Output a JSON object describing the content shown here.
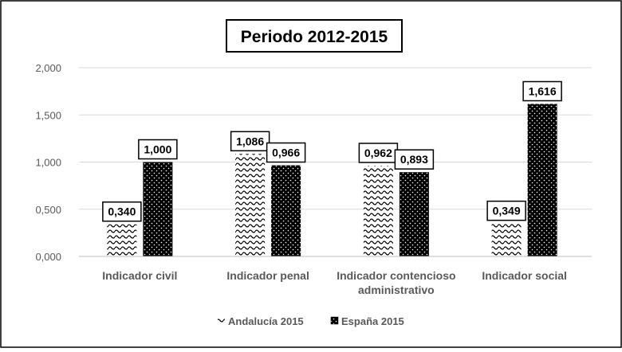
{
  "chart_data": {
    "type": "bar",
    "title": "Periodo 2012-2015",
    "categories": [
      [
        "Indicador civil"
      ],
      [
        "Indicador penal"
      ],
      [
        "Indicador contencioso",
        "administrativo"
      ],
      [
        "Indicador social"
      ]
    ],
    "series": [
      {
        "name": "Andalucía 2015",
        "values": [
          0.34,
          1.086,
          0.962,
          0.349
        ],
        "labels": [
          "0,340",
          "1,086",
          "0,962",
          "0,349"
        ],
        "pattern": "wave"
      },
      {
        "name": "España  2015",
        "values": [
          1.0,
          0.966,
          0.893,
          1.616
        ],
        "labels": [
          "1,000",
          "0,966",
          "0,893",
          "1,616"
        ],
        "pattern": "dots"
      }
    ],
    "ylim": [
      0,
      2
    ],
    "yticks": [
      0,
      0.5,
      1,
      1.5,
      2
    ],
    "ytick_labels": [
      "0,000",
      "0,500",
      "1,000",
      "1,500",
      "2,000"
    ],
    "grid": true,
    "legend": "bottom",
    "xlabel": "",
    "ylabel": ""
  },
  "colors": {
    "bar_fill": "#000000",
    "background": "#ffffff",
    "grid": "#d9d9d9",
    "axis_text": "#595959"
  }
}
